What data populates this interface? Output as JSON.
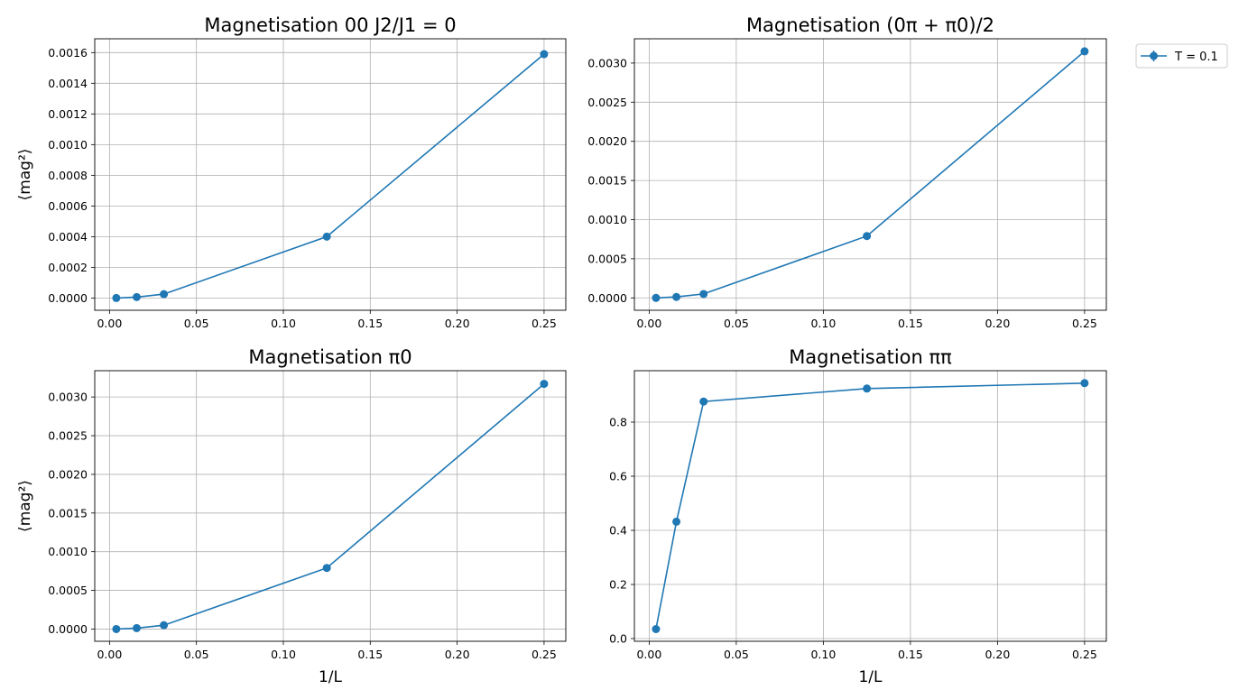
{
  "style": {
    "series_color": "#1f77b4",
    "grid_color": "#b0b0b0"
  },
  "legend": {
    "label": "T = 0.1",
    "placement": "outside-top-right"
  },
  "chart_data": [
    {
      "type": "line",
      "title": "Magnetisation 00 J2/J1 = 0",
      "xlabel": "",
      "ylabel": "⟨mag²⟩",
      "grid": true,
      "xlim": [
        -0.0085,
        0.2625
      ],
      "ylim": [
        -8e-05,
        0.00169
      ],
      "xticks": [
        0.0,
        0.05,
        0.1,
        0.15,
        0.2,
        0.25
      ],
      "xtick_labels": [
        "0.00",
        "0.05",
        "0.10",
        "0.15",
        "0.20",
        "0.25"
      ],
      "yticks": [
        0.0,
        0.0002,
        0.0004,
        0.0006,
        0.0008,
        0.001,
        0.0012,
        0.0014,
        0.0016
      ],
      "ytick_labels": [
        "0.0000",
        "0.0002",
        "0.0004",
        "0.0006",
        "0.0008",
        "0.0010",
        "0.0012",
        "0.0014",
        "0.0016"
      ],
      "series": [
        {
          "name": "T = 0.1",
          "x": [
            0.00390625,
            0.015625,
            0.03125,
            0.125,
            0.25
          ],
          "y": [
            0.0,
            6e-06,
            2.5e-05,
            0.0004,
            0.00159
          ]
        }
      ]
    },
    {
      "type": "line",
      "title": "Magnetisation (0π + π0)/2",
      "xlabel": "",
      "ylabel": "",
      "grid": true,
      "xlim": [
        -0.0085,
        0.2625
      ],
      "ylim": [
        -0.000158,
        0.00331
      ],
      "xticks": [
        0.0,
        0.05,
        0.1,
        0.15,
        0.2,
        0.25
      ],
      "xtick_labels": [
        "0.00",
        "0.05",
        "0.10",
        "0.15",
        "0.20",
        "0.25"
      ],
      "yticks": [
        0.0,
        0.0005,
        0.001,
        0.0015,
        0.002,
        0.0025,
        0.003
      ],
      "ytick_labels": [
        "0.0000",
        "0.0005",
        "0.0010",
        "0.0015",
        "0.0020",
        "0.0025",
        "0.0030"
      ],
      "series": [
        {
          "name": "T = 0.1",
          "x": [
            0.00390625,
            0.015625,
            0.03125,
            0.125,
            0.25
          ],
          "y": [
            0.0,
            1.2e-05,
            5e-05,
            0.00079,
            0.00315
          ]
        }
      ]
    },
    {
      "type": "line",
      "title": "Magnetisation π0",
      "xlabel": "1/L",
      "ylabel": "⟨mag²⟩",
      "grid": true,
      "xlim": [
        -0.0085,
        0.2625
      ],
      "ylim": [
        -0.000158,
        0.00334
      ],
      "xticks": [
        0.0,
        0.05,
        0.1,
        0.15,
        0.2,
        0.25
      ],
      "xtick_labels": [
        "0.00",
        "0.05",
        "0.10",
        "0.15",
        "0.20",
        "0.25"
      ],
      "yticks": [
        0.0,
        0.0005,
        0.001,
        0.0015,
        0.002,
        0.0025,
        0.003
      ],
      "ytick_labels": [
        "0.0000",
        "0.0005",
        "0.0010",
        "0.0015",
        "0.0020",
        "0.0025",
        "0.0030"
      ],
      "series": [
        {
          "name": "T = 0.1",
          "x": [
            0.00390625,
            0.015625,
            0.03125,
            0.125,
            0.25
          ],
          "y": [
            0.0,
            1.2e-05,
            5e-05,
            0.00079,
            0.00317
          ]
        }
      ]
    },
    {
      "type": "line",
      "title": "Magnetisation ππ",
      "xlabel": "1/L",
      "ylabel": "",
      "grid": true,
      "xlim": [
        -0.0085,
        0.2625
      ],
      "ylim": [
        -0.01,
        0.99
      ],
      "xticks": [
        0.0,
        0.05,
        0.1,
        0.15,
        0.2,
        0.25
      ],
      "xtick_labels": [
        "0.00",
        "0.05",
        "0.10",
        "0.15",
        "0.20",
        "0.25"
      ],
      "yticks": [
        0.0,
        0.2,
        0.4,
        0.6,
        0.8
      ],
      "ytick_labels": [
        "0.0",
        "0.2",
        "0.4",
        "0.6",
        "0.8"
      ],
      "series": [
        {
          "name": "T = 0.1",
          "x": [
            0.00390625,
            0.015625,
            0.03125,
            0.125,
            0.25
          ],
          "y": [
            0.035,
            0.432,
            0.876,
            0.924,
            0.944
          ]
        }
      ]
    }
  ]
}
